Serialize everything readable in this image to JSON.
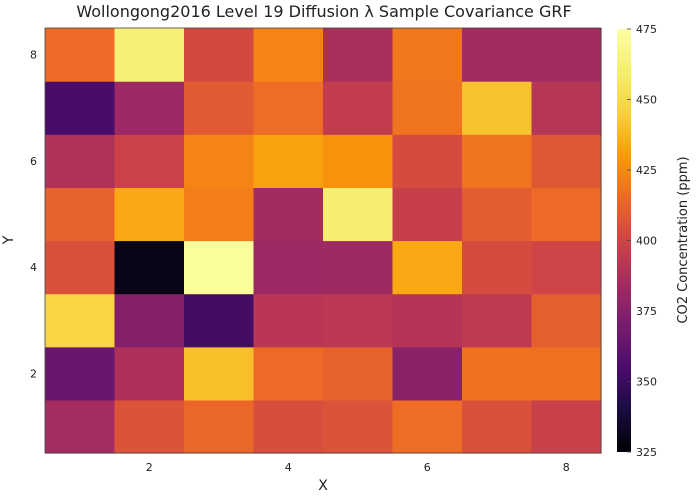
{
  "chart_data": {
    "type": "heatmap",
    "title": "Wollongong2016 Level 19 Diffusion λ Sample Covariance GRF",
    "xlabel": "X",
    "ylabel": "Y",
    "x_ticks": [
      2,
      4,
      6,
      8
    ],
    "y_ticks": [
      2,
      4,
      6,
      8
    ],
    "x_range": [
      0.5,
      8.5
    ],
    "y_range": [
      0.5,
      8.5
    ],
    "colorbar": {
      "label": "CO2 Concentration (ppm)",
      "min": 325,
      "max": 475,
      "ticks": [
        325,
        350,
        375,
        400,
        425,
        450,
        475
      ],
      "colormap": "inferno"
    },
    "rows_y": [
      1,
      2,
      3,
      4,
      5,
      6,
      7,
      8
    ],
    "grid": [
      [
        385,
        406,
        414,
        404,
        406,
        416,
        405,
        398
      ],
      [
        365,
        388,
        440,
        415,
        412,
        376,
        417,
        417
      ],
      [
        447,
        374,
        353,
        392,
        393,
        390,
        394,
        411
      ],
      [
        405,
        330,
        472,
        382,
        383,
        434,
        403,
        400
      ],
      [
        412,
        434,
        421,
        384,
        460,
        397,
        410,
        415
      ],
      [
        389,
        399,
        423,
        432,
        427,
        403,
        418,
        408
      ],
      [
        355,
        382,
        409,
        416,
        395,
        418,
        441,
        391
      ],
      [
        415,
        462,
        402,
        423,
        387,
        419,
        384,
        384
      ]
    ]
  }
}
